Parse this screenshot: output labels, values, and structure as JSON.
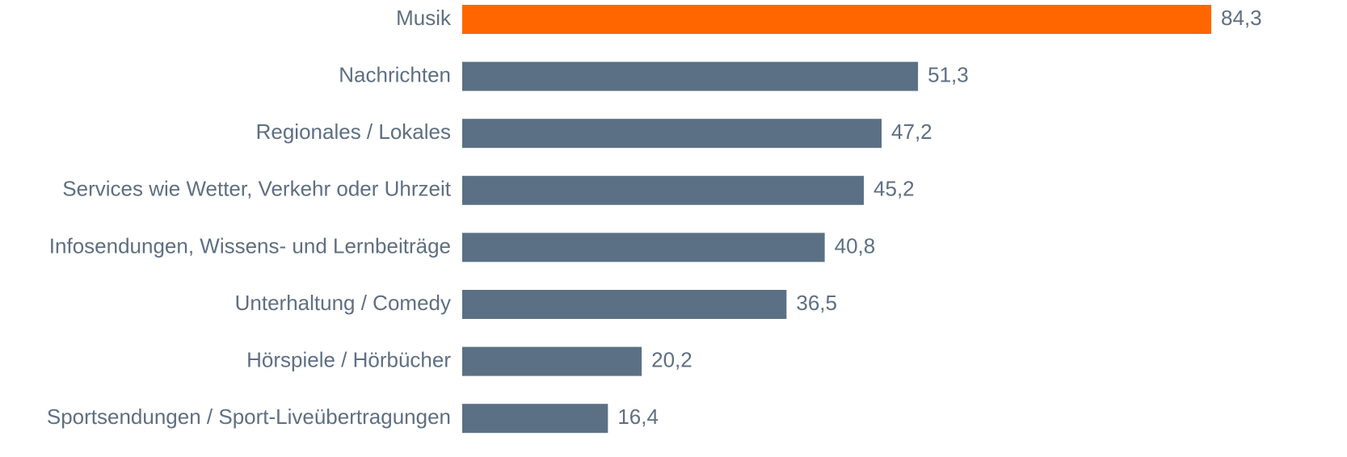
{
  "chart_data": {
    "type": "bar",
    "orientation": "horizontal",
    "categories": [
      "Musik",
      "Nachrichten",
      "Regionales / Lokales",
      "Services wie Wetter, Verkehr oder Uhrzeit",
      "Infosendungen, Wissens- und Lernbeiträge",
      "Unterhaltung / Comedy",
      "Hörspiele / Hörbücher",
      "Sportsendungen / Sport-Liveübertragungen"
    ],
    "values": [
      84.3,
      51.3,
      47.2,
      45.2,
      40.8,
      36.5,
      20.2,
      16.4
    ],
    "value_labels": [
      "84,3",
      "51,3",
      "47,2",
      "45,2",
      "40,8",
      "36,5",
      "20,2",
      "16,4"
    ],
    "colors": [
      "#ff6600",
      "#5b7085",
      "#5b7085",
      "#5b7085",
      "#5b7085",
      "#5b7085",
      "#5b7085",
      "#5b7085"
    ]
  }
}
